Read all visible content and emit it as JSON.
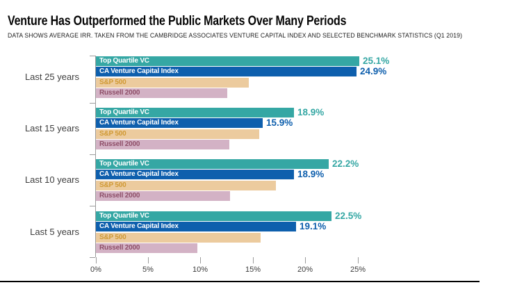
{
  "header": {
    "title": "Venture Has Outperformed the Public Markets Over Many Periods",
    "subtitle": "DATA SHOWS AVERAGE IRR. TAKEN FROM THE CAMBRIDGE ASSOCIATES VENTURE CAPITAL INDEX AND SELECTED BENCHMARK STATISTICS (Q1 2019)"
  },
  "chart_data": {
    "type": "bar",
    "orientation": "horizontal",
    "title": "Venture Has Outperformed the Public Markets Over Many Periods",
    "categories": [
      "Last 25 years",
      "Last 15 years",
      "Last 10 years",
      "Last 5 years"
    ],
    "series": [
      {
        "name": "Top Quartile VC",
        "color": "#35a7a4",
        "label_color": "#ffffff",
        "values": [
          25.1,
          18.9,
          22.2,
          22.5
        ],
        "value_labels": [
          "25.1%",
          "18.9%",
          "22.2%",
          "22.5%"
        ],
        "show_value": true
      },
      {
        "name": "CA Venture Capital Index",
        "color": "#0e5fad",
        "label_color": "#ffffff",
        "values": [
          24.9,
          15.9,
          18.9,
          19.1
        ],
        "value_labels": [
          "24.9%",
          "15.9%",
          "18.9%",
          "19.1%"
        ],
        "show_value": true
      },
      {
        "name": "S&P 500",
        "color": "#eccb9e",
        "label_color": "#d09934",
        "values": [
          14.6,
          15.6,
          17.2,
          15.7
        ],
        "value_labels": [],
        "show_value": false
      },
      {
        "name": "Russell 2000",
        "color": "#d3b2c5",
        "label_color": "#8e4e68",
        "values": [
          12.5,
          12.7,
          12.8,
          9.7
        ],
        "value_labels": [],
        "show_value": false
      }
    ],
    "x_axis": {
      "ticks": [
        "0%",
        "5%",
        "10%",
        "15%",
        "20%",
        "25%"
      ],
      "tick_values": [
        0,
        5,
        10,
        15,
        20,
        25
      ],
      "min": 0,
      "max": 25
    },
    "legend_position": "none",
    "grid": false
  }
}
